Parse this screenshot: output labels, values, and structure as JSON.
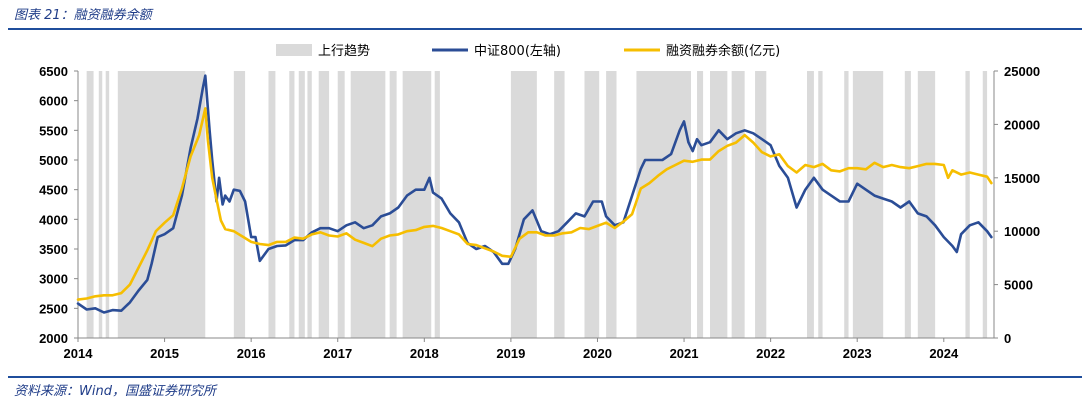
{
  "header": {
    "title": "图表 21：融资融券余额"
  },
  "footer": {
    "source": "资料来源：Wind，国盛证券研究所"
  },
  "colors": {
    "csi800": "#2b4d96",
    "margin": "#f6be00",
    "uptrend": "#dadada"
  },
  "chart_data": {
    "type": "line",
    "title": "",
    "xlabel": "",
    "ylabel": "",
    "legend_position": "top",
    "grid": false,
    "x_ticks": [
      "2014",
      "2015",
      "2016",
      "2017",
      "2018",
      "2019",
      "2020",
      "2021",
      "2022",
      "2023",
      "2024"
    ],
    "y_left": {
      "range": [
        2000,
        6500
      ],
      "ticks": [
        "2000",
        "2500",
        "3000",
        "3500",
        "4000",
        "4500",
        "5000",
        "5500",
        "6000",
        "6500"
      ]
    },
    "y_right": {
      "range": [
        0,
        25000
      ],
      "ticks": [
        "0",
        "5000",
        "10000",
        "15000",
        "20000",
        "25000"
      ]
    },
    "legend": {
      "uptrend": "上行趋势",
      "csi800": "中证800(左轴)",
      "margin": "融资融券余额(亿元)"
    },
    "uptrend_periods": [
      [
        2014.1,
        2014.18
      ],
      [
        2014.24,
        2014.28
      ],
      [
        2014.32,
        2014.36
      ],
      [
        2014.46,
        2015.47
      ],
      [
        2015.8,
        2015.93
      ],
      [
        2016.2,
        2016.28
      ],
      [
        2016.44,
        2016.5
      ],
      [
        2016.55,
        2016.62
      ],
      [
        2016.65,
        2016.7
      ],
      [
        2016.78,
        2016.9
      ],
      [
        2017.0,
        2017.08
      ],
      [
        2017.15,
        2017.55
      ],
      [
        2017.6,
        2017.68
      ],
      [
        2017.75,
        2018.08
      ],
      [
        2018.12,
        2018.18
      ],
      [
        2019.0,
        2019.3
      ],
      [
        2019.5,
        2019.62
      ],
      [
        2019.85,
        2020.02
      ],
      [
        2020.1,
        2020.22
      ],
      [
        2020.45,
        2021.08
      ],
      [
        2021.15,
        2021.22
      ],
      [
        2021.3,
        2021.5
      ],
      [
        2021.55,
        2021.7
      ],
      [
        2021.82,
        2021.95
      ],
      [
        2022.42,
        2022.5
      ],
      [
        2022.55,
        2022.6
      ],
      [
        2022.85,
        2022.9
      ],
      [
        2022.95,
        2023.3
      ],
      [
        2023.55,
        2023.62
      ],
      [
        2023.7,
        2023.9
      ],
      [
        2024.25,
        2024.3
      ],
      [
        2024.45,
        2024.5
      ]
    ],
    "series": [
      {
        "name": "中证800(左轴)",
        "axis": "left",
        "x": [
          2014.0,
          2014.1,
          2014.2,
          2014.3,
          2014.4,
          2014.5,
          2014.6,
          2014.7,
          2014.8,
          2014.85,
          2014.92,
          2015.0,
          2015.1,
          2015.2,
          2015.3,
          2015.38,
          2015.44,
          2015.47,
          2015.52,
          2015.55,
          2015.6,
          2015.63,
          2015.67,
          2015.7,
          2015.75,
          2015.8,
          2015.87,
          2015.93,
          2016.0,
          2016.05,
          2016.1,
          2016.2,
          2016.3,
          2016.4,
          2016.5,
          2016.6,
          2016.7,
          2016.8,
          2016.9,
          2017.0,
          2017.1,
          2017.2,
          2017.3,
          2017.4,
          2017.5,
          2017.6,
          2017.7,
          2017.8,
          2017.9,
          2018.0,
          2018.06,
          2018.1,
          2018.2,
          2018.3,
          2018.4,
          2018.5,
          2018.6,
          2018.7,
          2018.8,
          2018.9,
          2018.97,
          2019.05,
          2019.15,
          2019.25,
          2019.35,
          2019.45,
          2019.55,
          2019.65,
          2019.75,
          2019.85,
          2019.95,
          2020.05,
          2020.1,
          2020.2,
          2020.3,
          2020.4,
          2020.5,
          2020.55,
          2020.65,
          2020.75,
          2020.85,
          2020.95,
          2021.0,
          2021.05,
          2021.1,
          2021.15,
          2021.2,
          2021.3,
          2021.4,
          2021.5,
          2021.6,
          2021.7,
          2021.8,
          2021.9,
          2022.0,
          2022.1,
          2022.2,
          2022.3,
          2022.4,
          2022.5,
          2022.6,
          2022.7,
          2022.8,
          2022.9,
          2023.0,
          2023.1,
          2023.2,
          2023.3,
          2023.4,
          2023.5,
          2023.6,
          2023.7,
          2023.8,
          2023.9,
          2024.0,
          2024.1,
          2024.15,
          2024.2,
          2024.3,
          2024.4,
          2024.5,
          2024.55
        ],
        "values": [
          2580,
          2480,
          2500,
          2430,
          2470,
          2460,
          2600,
          2800,
          2980,
          3250,
          3700,
          3750,
          3850,
          4400,
          5200,
          5700,
          6200,
          6420,
          5500,
          5000,
          4300,
          4700,
          4250,
          4400,
          4300,
          4500,
          4480,
          4300,
          3700,
          3700,
          3300,
          3500,
          3550,
          3560,
          3650,
          3650,
          3780,
          3850,
          3850,
          3800,
          3900,
          3950,
          3850,
          3900,
          4050,
          4100,
          4200,
          4400,
          4500,
          4500,
          4700,
          4450,
          4350,
          4100,
          3950,
          3600,
          3500,
          3550,
          3450,
          3250,
          3250,
          3500,
          4000,
          4150,
          3800,
          3750,
          3800,
          3950,
          4100,
          4050,
          4300,
          4300,
          4050,
          3900,
          3950,
          4400,
          4850,
          5000,
          5000,
          5000,
          5100,
          5500,
          5650,
          5300,
          5150,
          5350,
          5250,
          5300,
          5500,
          5350,
          5450,
          5500,
          5450,
          5350,
          5250,
          4900,
          4700,
          4200,
          4500,
          4700,
          4500,
          4400,
          4300,
          4300,
          4600,
          4500,
          4400,
          4350,
          4300,
          4200,
          4300,
          4100,
          4050,
          3900,
          3700,
          3550,
          3450,
          3750,
          3900,
          3950,
          3800,
          3700
        ]
      },
      {
        "name": "融资融券余额(亿元)",
        "axis": "right",
        "x": [
          2014.0,
          2014.1,
          2014.2,
          2014.3,
          2014.4,
          2014.5,
          2014.6,
          2014.7,
          2014.8,
          2014.9,
          2015.0,
          2015.1,
          2015.2,
          2015.3,
          2015.4,
          2015.47,
          2015.5,
          2015.55,
          2015.6,
          2015.65,
          2015.7,
          2015.8,
          2015.9,
          2016.0,
          2016.1,
          2016.2,
          2016.3,
          2016.4,
          2016.5,
          2016.6,
          2016.7,
          2016.8,
          2016.9,
          2017.0,
          2017.1,
          2017.2,
          2017.3,
          2017.4,
          2017.5,
          2017.6,
          2017.7,
          2017.8,
          2017.9,
          2018.0,
          2018.1,
          2018.2,
          2018.3,
          2018.4,
          2018.5,
          2018.6,
          2018.7,
          2018.8,
          2018.9,
          2019.0,
          2019.1,
          2019.2,
          2019.3,
          2019.4,
          2019.5,
          2019.6,
          2019.7,
          2019.8,
          2019.9,
          2020.0,
          2020.1,
          2020.2,
          2020.3,
          2020.4,
          2020.5,
          2020.6,
          2020.7,
          2020.8,
          2020.9,
          2021.0,
          2021.1,
          2021.2,
          2021.3,
          2021.4,
          2021.5,
          2021.6,
          2021.7,
          2021.8,
          2021.9,
          2022.0,
          2022.1,
          2022.2,
          2022.3,
          2022.4,
          2022.5,
          2022.6,
          2022.7,
          2022.8,
          2022.9,
          2023.0,
          2023.1,
          2023.2,
          2023.3,
          2023.4,
          2023.5,
          2023.6,
          2023.7,
          2023.8,
          2023.9,
          2024.0,
          2024.05,
          2024.1,
          2024.2,
          2024.3,
          2024.4,
          2024.5,
          2024.55
        ],
        "values": [
          3600,
          3700,
          3900,
          4000,
          4000,
          4200,
          5000,
          6600,
          8200,
          10000,
          10800,
          11500,
          14000,
          17000,
          19000,
          21500,
          18500,
          15000,
          13000,
          11000,
          10200,
          10000,
          9500,
          9000,
          8800,
          8700,
          9000,
          9000,
          9400,
          9300,
          9700,
          9900,
          9600,
          9500,
          9800,
          9200,
          8900,
          8600,
          9300,
          9600,
          9700,
          10000,
          10100,
          10400,
          10500,
          10300,
          10000,
          9700,
          8800,
          8700,
          8400,
          8100,
          7700,
          7600,
          9300,
          9900,
          9900,
          9600,
          9600,
          9800,
          9900,
          10300,
          10200,
          10500,
          10800,
          10300,
          10900,
          11600,
          14000,
          14500,
          15200,
          15800,
          16200,
          16600,
          16500,
          16700,
          16700,
          17500,
          18000,
          18300,
          19000,
          18300,
          17400,
          17000,
          17200,
          16100,
          15500,
          16200,
          16000,
          16300,
          15700,
          15600,
          15900,
          15900,
          15800,
          16400,
          16000,
          16200,
          16000,
          15900,
          16100,
          16300,
          16300,
          16200,
          15000,
          15700,
          15300,
          15500,
          15300,
          15100,
          14500
        ]
      }
    ]
  }
}
